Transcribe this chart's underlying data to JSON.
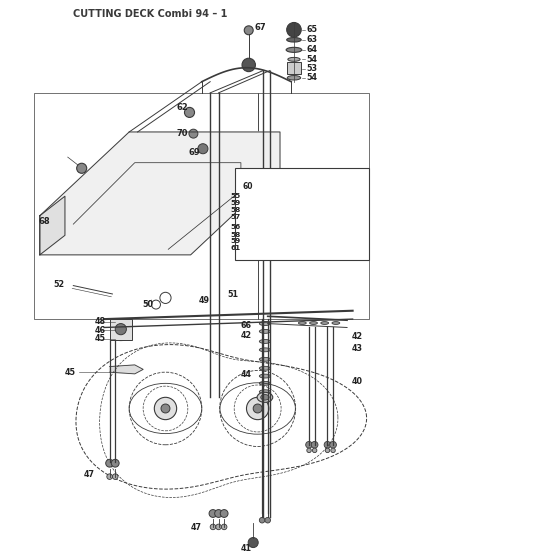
{
  "title": "CUTTING DECK Combi 94 – 1",
  "bg_color": "#ffffff",
  "line_color": "#3a3a3a",
  "title_fontsize": 7.0,
  "label_fontsize": 6.0
}
